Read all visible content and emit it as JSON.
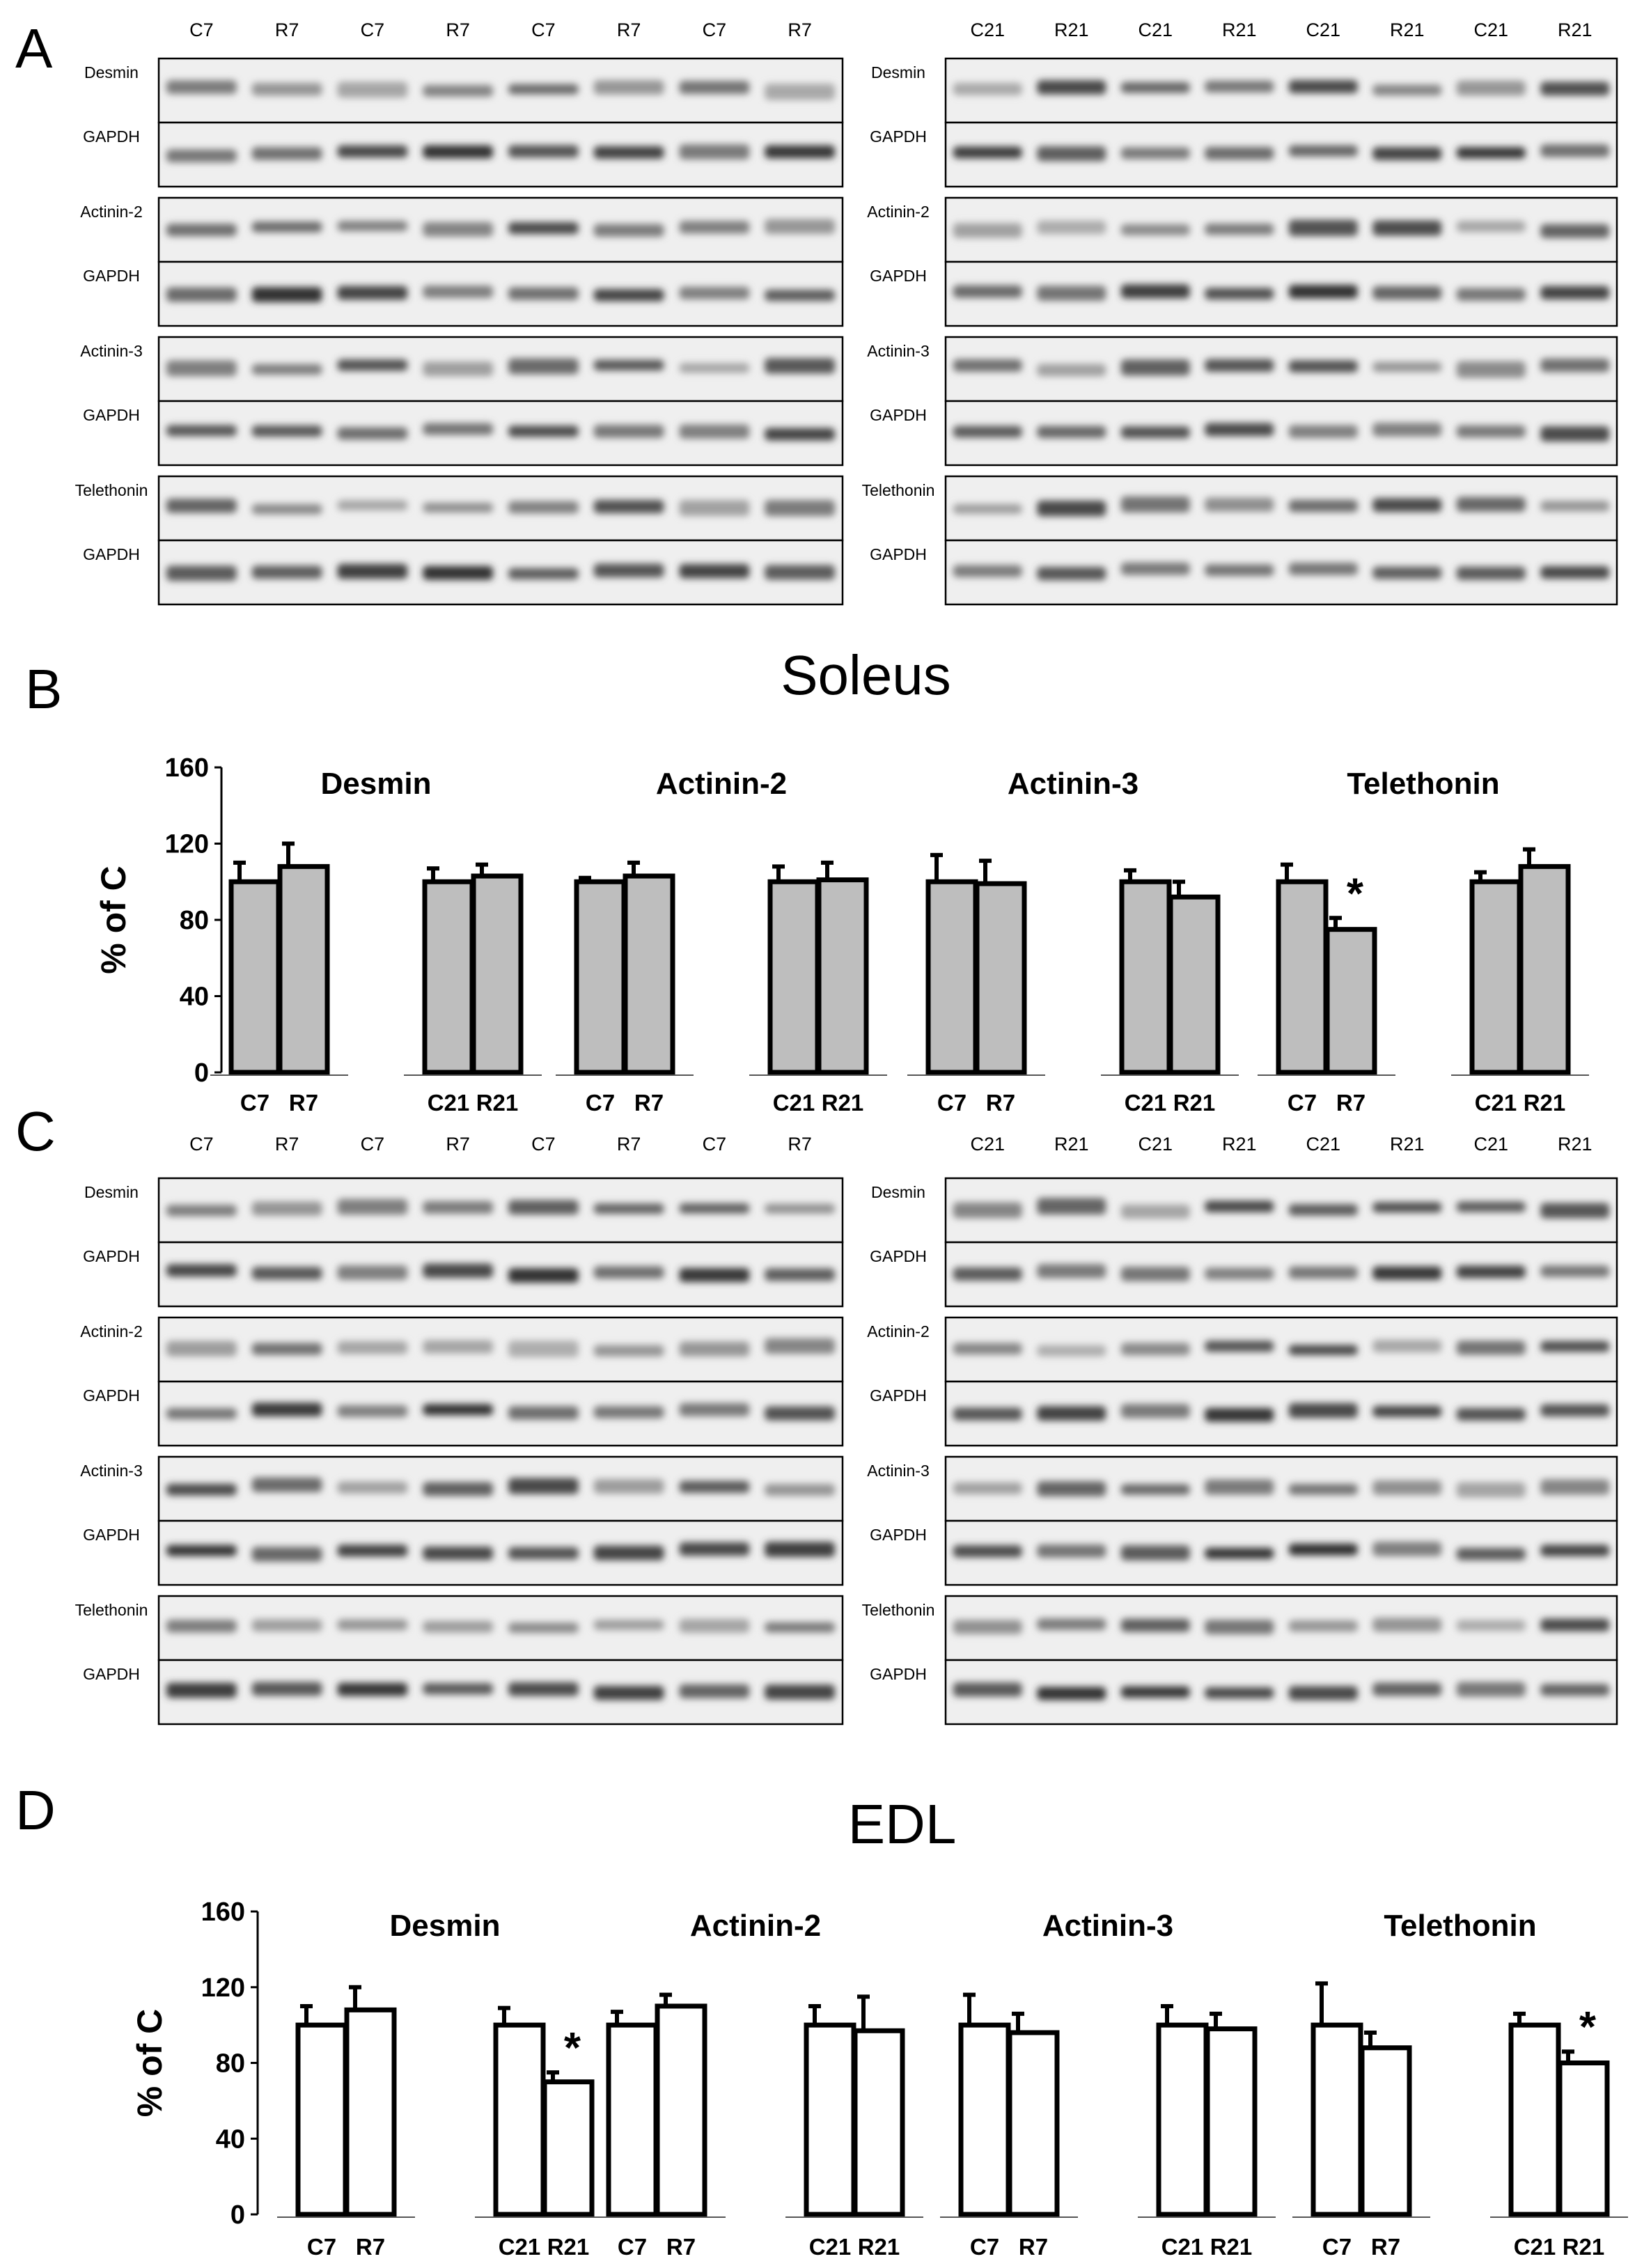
{
  "panels": {
    "A": {
      "letter": "A"
    },
    "B": {
      "letter": "B",
      "title": "Soleus"
    },
    "C": {
      "letter": "C"
    },
    "D": {
      "letter": "D",
      "title": "EDL"
    }
  },
  "blots": {
    "left_lanes": [
      "C7",
      "R7",
      "C7",
      "R7",
      "C7",
      "R7",
      "C7",
      "R7"
    ],
    "right_lanes": [
      "C21",
      "R21",
      "C21",
      "R21",
      "C21",
      "R21",
      "C21",
      "R21"
    ],
    "groups": [
      {
        "protein": "Desmin",
        "loading": "GAPDH"
      },
      {
        "protein": "Actinin-2",
        "loading": "GAPDH"
      },
      {
        "protein": "Actinin-3",
        "loading": "GAPDH"
      },
      {
        "protein": "Telethonin",
        "loading": "GAPDH"
      }
    ]
  },
  "chart_data": [
    {
      "type": "bar",
      "panel": "B",
      "title": "Soleus",
      "ylabel": "% of C",
      "ylim": [
        0,
        160
      ],
      "yticks": [
        0,
        40,
        80,
        120,
        160
      ],
      "bar_color": "#bebebe",
      "groups": [
        {
          "name": "Desmin",
          "bars": [
            {
              "label": "C7",
              "value": 100,
              "error": 10
            },
            {
              "label": "R7",
              "value": 108,
              "error": 12
            },
            {
              "label": "C21",
              "value": 100,
              "error": 7
            },
            {
              "label": "R21",
              "value": 103,
              "error": 6
            }
          ]
        },
        {
          "name": "Actinin-2",
          "bars": [
            {
              "label": "C7",
              "value": 100,
              "error": 2
            },
            {
              "label": "R7",
              "value": 103,
              "error": 7
            },
            {
              "label": "C21",
              "value": 100,
              "error": 8
            },
            {
              "label": "R21",
              "value": 101,
              "error": 9
            }
          ]
        },
        {
          "name": "Actinin-3",
          "bars": [
            {
              "label": "C7",
              "value": 100,
              "error": 14
            },
            {
              "label": "R7",
              "value": 99,
              "error": 12
            },
            {
              "label": "C21",
              "value": 100,
              "error": 6
            },
            {
              "label": "R21",
              "value": 92,
              "error": 8
            }
          ]
        },
        {
          "name": "Telethonin",
          "bars": [
            {
              "label": "C7",
              "value": 100,
              "error": 9
            },
            {
              "label": "R7",
              "value": 75,
              "error": 6,
              "annotation": "*"
            },
            {
              "label": "C21",
              "value": 100,
              "error": 5
            },
            {
              "label": "R21",
              "value": 108,
              "error": 9
            }
          ]
        }
      ]
    },
    {
      "type": "bar",
      "panel": "D",
      "title": "EDL",
      "ylabel": "% of C",
      "ylim": [
        0,
        160
      ],
      "yticks": [
        0,
        40,
        80,
        120,
        160
      ],
      "bar_color": "#ffffff",
      "groups": [
        {
          "name": "Desmin",
          "bars": [
            {
              "label": "C7",
              "value": 100,
              "error": 10
            },
            {
              "label": "R7",
              "value": 108,
              "error": 12
            },
            {
              "label": "C21",
              "value": 100,
              "error": 9
            },
            {
              "label": "R21",
              "value": 70,
              "error": 5,
              "annotation": "*"
            }
          ]
        },
        {
          "name": "Actinin-2",
          "bars": [
            {
              "label": "C7",
              "value": 100,
              "error": 7
            },
            {
              "label": "R7",
              "value": 110,
              "error": 6
            },
            {
              "label": "C21",
              "value": 100,
              "error": 10
            },
            {
              "label": "R21",
              "value": 97,
              "error": 18
            }
          ]
        },
        {
          "name": "Actinin-3",
          "bars": [
            {
              "label": "C7",
              "value": 100,
              "error": 16
            },
            {
              "label": "R7",
              "value": 96,
              "error": 10
            },
            {
              "label": "C21",
              "value": 100,
              "error": 10
            },
            {
              "label": "R21",
              "value": 98,
              "error": 8
            }
          ]
        },
        {
          "name": "Telethonin",
          "bars": [
            {
              "label": "C7",
              "value": 100,
              "error": 22
            },
            {
              "label": "R7",
              "value": 88,
              "error": 8
            },
            {
              "label": "C21",
              "value": 100,
              "error": 6
            },
            {
              "label": "R21",
              "value": 80,
              "error": 6,
              "annotation": "*"
            }
          ]
        }
      ]
    }
  ]
}
